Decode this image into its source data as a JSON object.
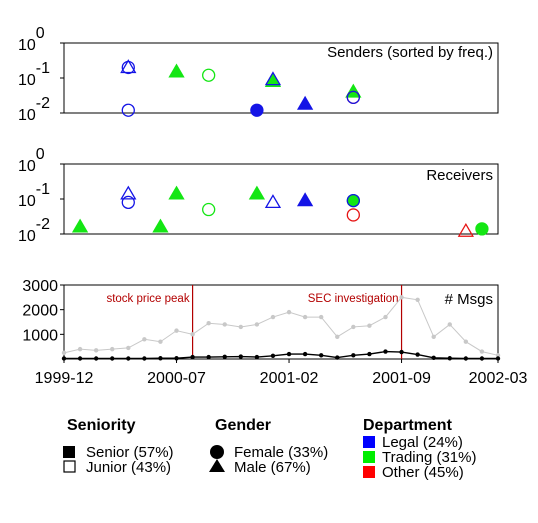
{
  "chart_data": [
    {
      "type": "scatter",
      "title": "Senders (sorted by freq.)",
      "yscale": "log",
      "ylim": [
        0.01,
        1
      ],
      "yticks": [
        {
          "value": 1,
          "base": "10",
          "exp": "0"
        },
        {
          "value": 0.1,
          "base": "10",
          "exp": "-1"
        },
        {
          "value": 0.01,
          "base": "10",
          "exp": "-2"
        }
      ],
      "xlim": [
        "1999-12",
        "2002-03"
      ],
      "points": [
        {
          "date": "2000-04",
          "y": 0.2,
          "gender": "female",
          "seniority": "junior",
          "department": "legal"
        },
        {
          "date": "2000-04",
          "y": 0.2,
          "gender": "male",
          "seniority": "junior",
          "department": "legal"
        },
        {
          "date": "2000-04",
          "y": 0.012,
          "gender": "female",
          "seniority": "junior",
          "department": "legal"
        },
        {
          "date": "2000-07",
          "y": 0.15,
          "gender": "male",
          "seniority": "senior",
          "department": "trading"
        },
        {
          "date": "2000-09",
          "y": 0.12,
          "gender": "female",
          "seniority": "junior",
          "department": "trading"
        },
        {
          "date": "2000-12",
          "y": 0.012,
          "gender": "female",
          "seniority": "senior",
          "department": "legal"
        },
        {
          "date": "2001-01",
          "y": 0.08,
          "gender": "male",
          "seniority": "senior",
          "department": "trading"
        },
        {
          "date": "2001-01",
          "y": 0.09,
          "gender": "male",
          "seniority": "junior",
          "department": "legal"
        },
        {
          "date": "2001-03",
          "y": 0.018,
          "gender": "male",
          "seniority": "senior",
          "department": "legal"
        },
        {
          "date": "2001-06",
          "y": 0.04,
          "gender": "male",
          "seniority": "senior",
          "department": "trading"
        },
        {
          "date": "2001-06",
          "y": 0.028,
          "gender": "female",
          "seniority": "junior",
          "department": "other"
        },
        {
          "date": "2001-06",
          "y": 0.028,
          "gender": "female",
          "seniority": "junior",
          "department": "legal"
        }
      ]
    },
    {
      "type": "scatter",
      "title": "Receivers",
      "yscale": "log",
      "ylim": [
        0.01,
        1
      ],
      "yticks": [
        {
          "value": 1,
          "base": "10",
          "exp": "0"
        },
        {
          "value": 0.1,
          "base": "10",
          "exp": "-1"
        },
        {
          "value": 0.01,
          "base": "10",
          "exp": "-2"
        }
      ],
      "xlim": [
        "1999-12",
        "2002-03"
      ],
      "points": [
        {
          "date": "2000-01",
          "y": 0.016,
          "gender": "male",
          "seniority": "senior",
          "department": "trading"
        },
        {
          "date": "2000-04",
          "y": 0.08,
          "gender": "female",
          "seniority": "junior",
          "department": "legal"
        },
        {
          "date": "2000-04",
          "y": 0.14,
          "gender": "male",
          "seniority": "junior",
          "department": "legal"
        },
        {
          "date": "2000-06",
          "y": 0.016,
          "gender": "male",
          "seniority": "senior",
          "department": "trading"
        },
        {
          "date": "2000-07",
          "y": 0.14,
          "gender": "male",
          "seniority": "senior",
          "department": "trading"
        },
        {
          "date": "2000-09",
          "y": 0.05,
          "gender": "female",
          "seniority": "junior",
          "department": "trading"
        },
        {
          "date": "2000-12",
          "y": 0.14,
          "gender": "male",
          "seniority": "senior",
          "department": "trading"
        },
        {
          "date": "2001-01",
          "y": 0.08,
          "gender": "male",
          "seniority": "junior",
          "department": "legal"
        },
        {
          "date": "2001-03",
          "y": 0.09,
          "gender": "male",
          "seniority": "senior",
          "department": "legal"
        },
        {
          "date": "2001-06",
          "y": 0.09,
          "gender": "female",
          "seniority": "senior",
          "department": "trading"
        },
        {
          "date": "2001-06",
          "y": 0.035,
          "gender": "female",
          "seniority": "junior",
          "department": "other"
        },
        {
          "date": "2001-06",
          "y": 0.09,
          "gender": "female",
          "seniority": "junior",
          "department": "legal"
        },
        {
          "date": "2002-01",
          "y": 0.012,
          "gender": "male",
          "seniority": "junior",
          "department": "other"
        },
        {
          "date": "2002-02",
          "y": 0.014,
          "gender": "female",
          "seniority": "senior",
          "department": "trading"
        }
      ]
    },
    {
      "type": "line",
      "title": "# Msgs",
      "ylim": [
        0,
        3000
      ],
      "yticks": [
        1000,
        2000,
        3000
      ],
      "xlim": [
        "1999-12",
        "2002-03"
      ],
      "xticks": [
        "1999-12",
        "2000-07",
        "2001-02",
        "2001-09",
        "2002-03"
      ],
      "annotations": [
        {
          "date": "2000-08",
          "label": "stock price peak"
        },
        {
          "date": "2001-09",
          "label": "SEC investigation"
        }
      ],
      "x": [
        "1999-12",
        "2000-01",
        "2000-02",
        "2000-03",
        "2000-04",
        "2000-05",
        "2000-06",
        "2000-07",
        "2000-08",
        "2000-09",
        "2000-10",
        "2000-11",
        "2000-12",
        "2001-01",
        "2001-02",
        "2001-03",
        "2001-04",
        "2001-05",
        "2001-06",
        "2001-07",
        "2001-08",
        "2001-09",
        "2001-10",
        "2001-11",
        "2001-12",
        "2002-01",
        "2002-02",
        "2002-03"
      ],
      "series": [
        {
          "values": [
            250,
            400,
            350,
            400,
            450,
            800,
            700,
            1150,
            1000,
            1450,
            1400,
            1300,
            1400,
            1700,
            1900,
            1700,
            1700,
            900,
            1300,
            1350,
            1700,
            2500,
            2400,
            900,
            1400,
            700,
            300,
            150
          ],
          "color": "#c8c8c8"
        },
        {
          "values": [
            20,
            20,
            20,
            20,
            20,
            20,
            30,
            30,
            80,
            80,
            90,
            100,
            80,
            130,
            200,
            200,
            150,
            60,
            150,
            200,
            300,
            280,
            180,
            50,
            30,
            20,
            20,
            20
          ],
          "color": "#000000"
        }
      ]
    }
  ],
  "legend": {
    "seniority": {
      "title": "Seniority",
      "items": [
        {
          "label": "Senior (57%)"
        },
        {
          "label": "Junior (43%)"
        }
      ]
    },
    "gender": {
      "title": "Gender",
      "items": [
        {
          "label": "Female (33%)"
        },
        {
          "label": "Male (67%)"
        }
      ]
    },
    "department": {
      "title": "Department",
      "items": [
        {
          "label": "Legal (24%)",
          "color": "#0000ff"
        },
        {
          "label": "Trading (31%)",
          "color": "#00ee00"
        },
        {
          "label": "Other (45%)",
          "color": "#ff0000"
        }
      ]
    }
  },
  "colors": {
    "legal": "#1414e6",
    "trading": "#14e614",
    "other": "#e61414",
    "annotation": "#b30000"
  }
}
